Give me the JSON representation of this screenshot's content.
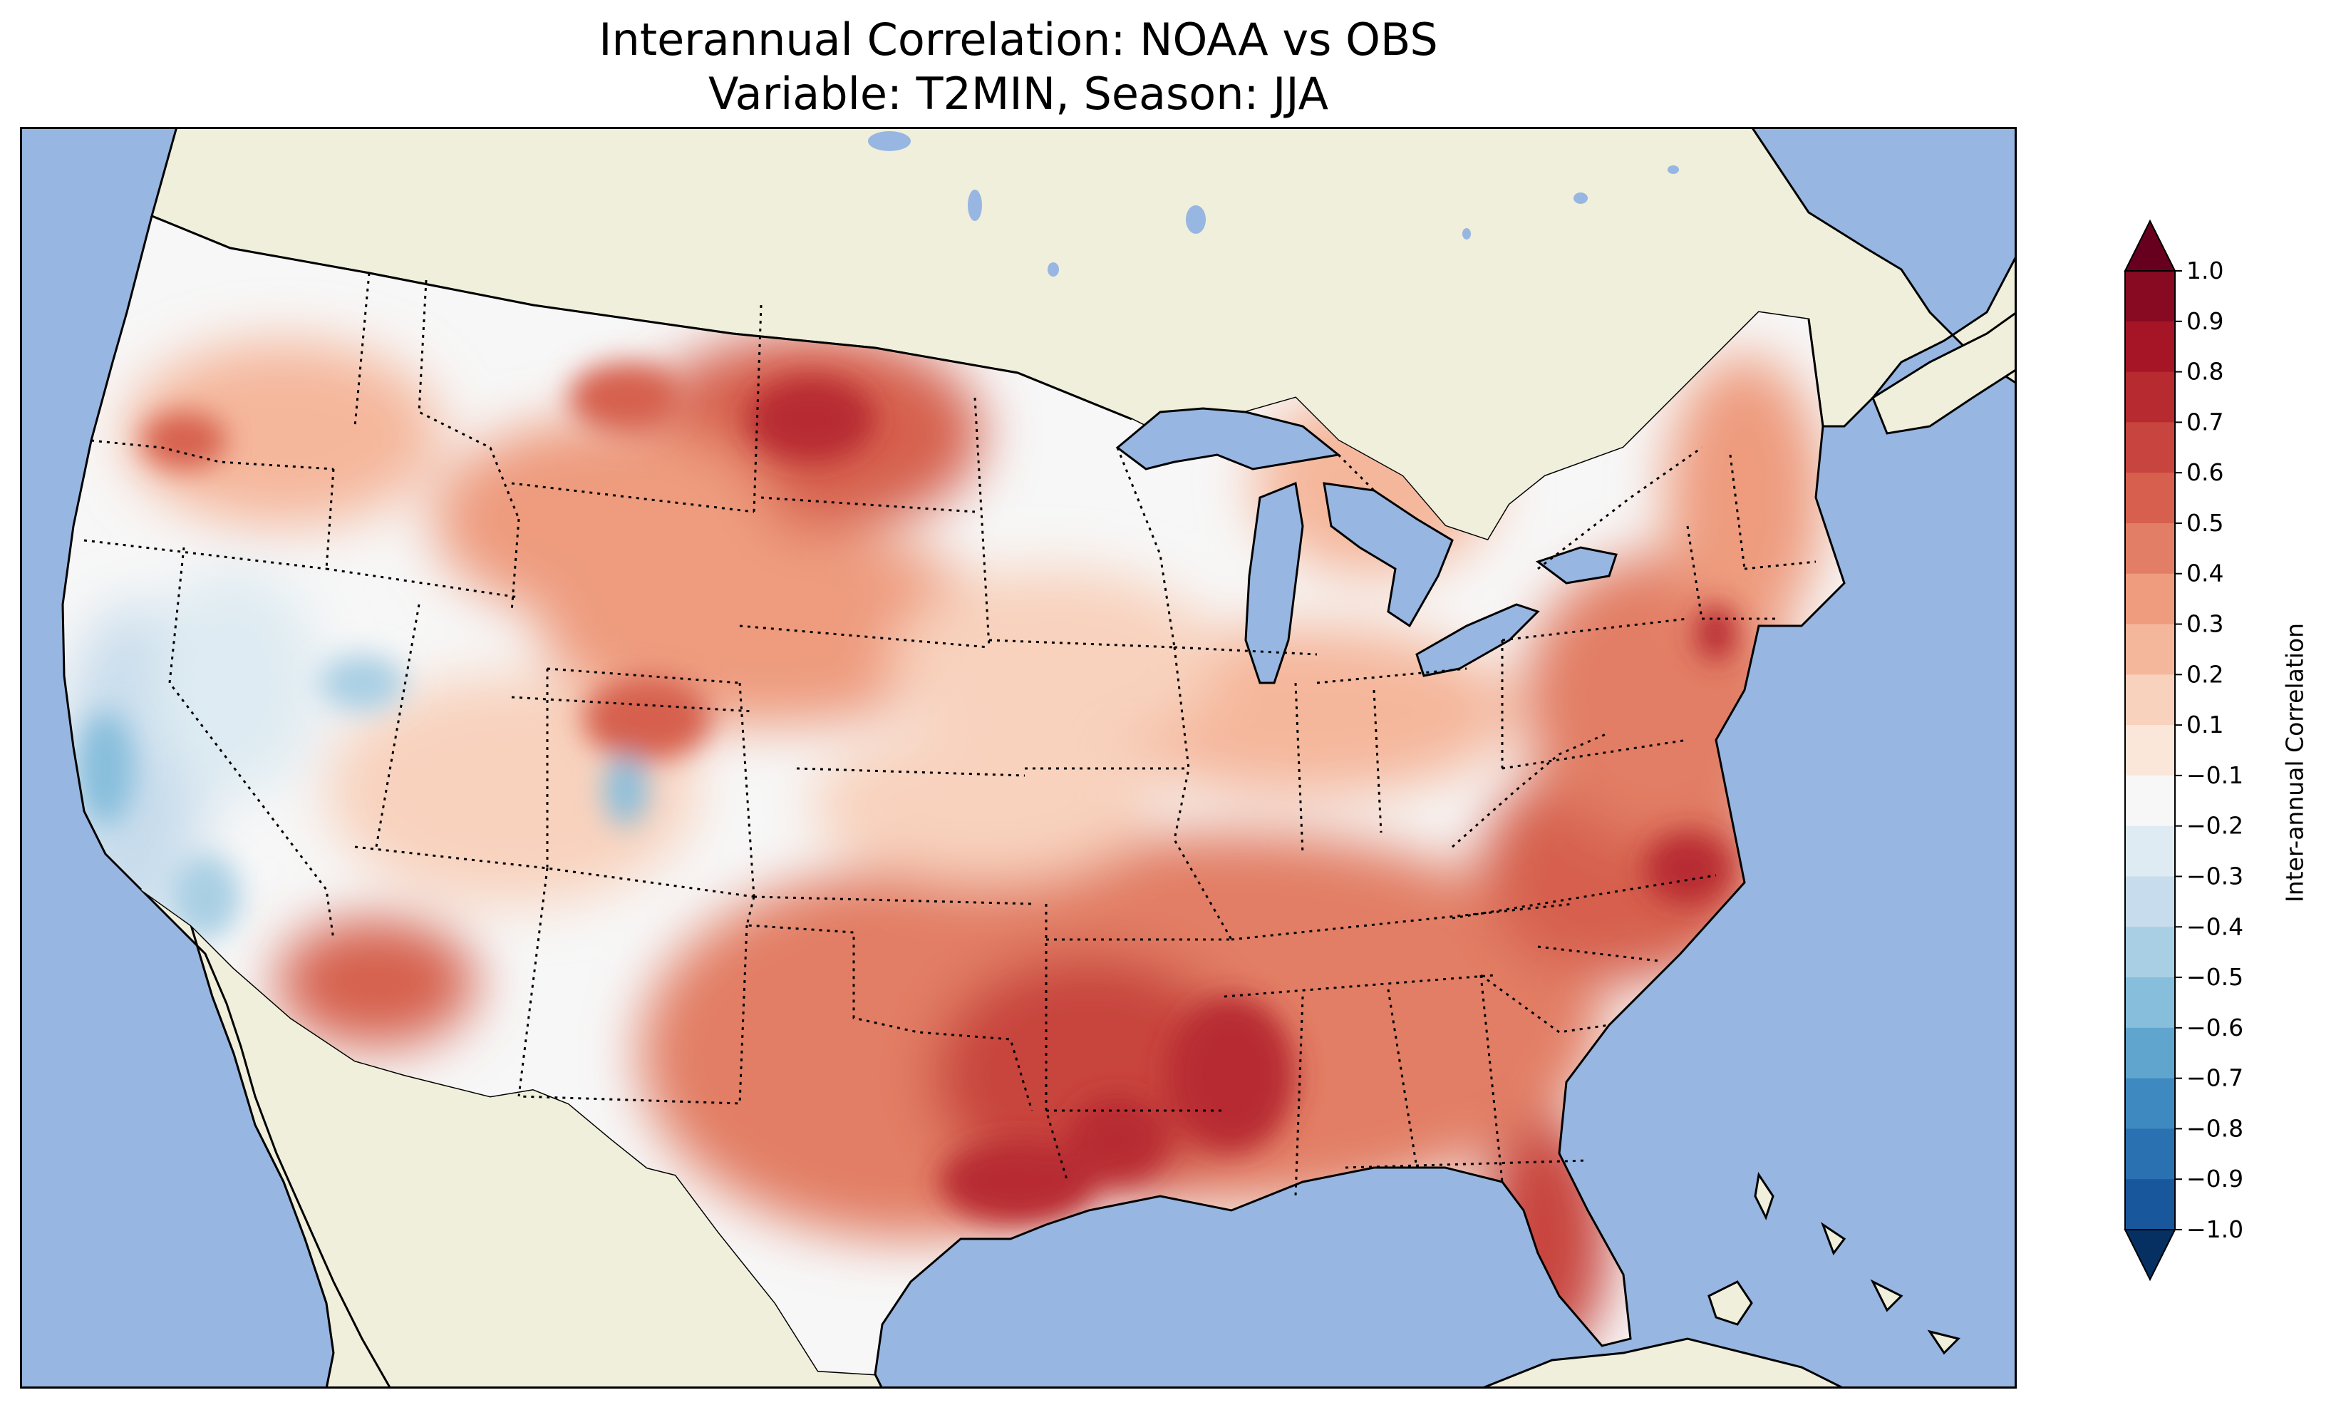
{
  "figure": {
    "title_line1": "Interannual Correlation: NOAA vs OBS",
    "title_line2": "Variable: T2MIN, Season: JJA"
  },
  "colorbar": {
    "label": "Inter-annual Correlation",
    "ticks": [
      "1.0",
      "0.9",
      "0.8",
      "0.7",
      "0.6",
      "0.5",
      "0.4",
      "0.3",
      "0.2",
      "0.1",
      "−0.1",
      "−0.2",
      "−0.3",
      "−0.4",
      "−0.5",
      "−0.6",
      "−0.7",
      "−0.8",
      "−0.9",
      "−1.0"
    ],
    "colors": [
      "#67001f",
      "#880a22",
      "#a51526",
      "#b72a30",
      "#c8443e",
      "#d6604d",
      "#e27e65",
      "#ee9b7e",
      "#f5b79c",
      "#f8d2bd",
      "#fbe6da",
      "#f7f7f7",
      "#deebf2",
      "#c7dcec",
      "#a9cfe4",
      "#87bedc",
      "#5fa5ce",
      "#3e8ac0",
      "#2a71b2",
      "#18579b",
      "#0b3d76",
      "#053061"
    ],
    "range": [
      -1.0,
      1.0
    ]
  },
  "map": {
    "ocean_color": "#97b6e1",
    "land_color": "#efefdb",
    "lake_color": "#97b6e1"
  }
}
